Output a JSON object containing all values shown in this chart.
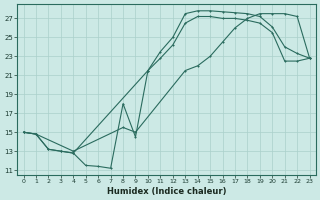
{
  "xlabel": "Humidex (Indice chaleur)",
  "bg_color": "#cce9e5",
  "line_color": "#2a6b5e",
  "grid_color": "#aad0cb",
  "xlim": [
    -0.5,
    23.5
  ],
  "ylim": [
    10.5,
    28.5
  ],
  "xticks": [
    0,
    1,
    2,
    3,
    4,
    5,
    6,
    7,
    8,
    9,
    10,
    11,
    12,
    13,
    14,
    15,
    16,
    17,
    18,
    19,
    20,
    21,
    22,
    23
  ],
  "yticks": [
    11,
    13,
    15,
    17,
    19,
    21,
    23,
    25,
    27
  ],
  "curve_jagged_x": [
    0,
    1,
    2,
    3,
    4,
    5,
    6,
    7,
    8,
    9,
    10,
    11,
    12,
    13,
    14,
    15,
    16,
    17,
    18,
    19,
    20,
    21,
    22,
    23
  ],
  "curve_jagged_y": [
    15.0,
    14.8,
    13.2,
    13.0,
    12.8,
    11.5,
    11.4,
    11.2,
    18.0,
    14.5,
    21.5,
    23.5,
    25.0,
    27.5,
    27.8,
    27.8,
    27.7,
    27.6,
    27.5,
    27.2,
    26.1,
    24.0,
    23.3,
    22.8
  ],
  "curve_smooth_x": [
    0,
    1,
    2,
    3,
    4,
    10,
    11,
    12,
    13,
    14,
    15,
    16,
    17,
    18,
    19,
    20,
    21,
    22,
    23
  ],
  "curve_smooth_y": [
    15.0,
    14.8,
    13.2,
    13.0,
    12.8,
    21.5,
    22.8,
    24.2,
    26.5,
    27.2,
    27.2,
    27.0,
    27.0,
    26.8,
    26.5,
    25.5,
    22.5,
    22.5,
    22.8
  ],
  "curve_diag_x": [
    0,
    1,
    4,
    8,
    9,
    13,
    14,
    15,
    16,
    17,
    18,
    19,
    20,
    21,
    22,
    23
  ],
  "curve_diag_y": [
    15.0,
    14.8,
    13.0,
    15.5,
    15.0,
    21.5,
    22.0,
    23.0,
    24.5,
    26.0,
    27.0,
    27.5,
    27.5,
    27.5,
    27.2,
    22.8
  ]
}
